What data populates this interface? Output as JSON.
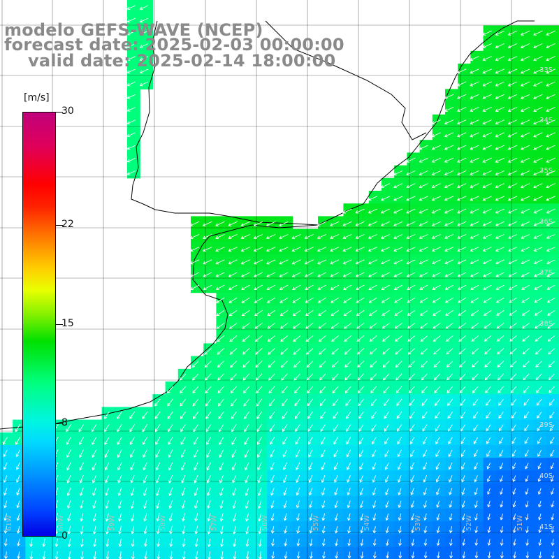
{
  "title": {
    "line1": "modelo GEFS-WAVE (NCEP)",
    "line2": "forecast date: 2025-02-03 00:00:00",
    "line3": "valid date: 2025-02-14 18:00:00"
  },
  "colorbar": {
    "unit": "[m/s]",
    "ticks": [
      {
        "value": 30,
        "label": "30"
      },
      {
        "value": 22,
        "label": "22"
      },
      {
        "value": 15,
        "label": "15"
      },
      {
        "value": 8,
        "label": "8"
      },
      {
        "value": 0,
        "label": "0"
      }
    ],
    "min": 0,
    "max": 30
  },
  "map": {
    "lat_labels": [
      "33S",
      "34S",
      "35S",
      "36S",
      "37S",
      "38S",
      "39S",
      "40S",
      "41S"
    ],
    "lon_labels": [
      "61W",
      "60W",
      "59W",
      "58W",
      "57W",
      "56W",
      "55W",
      "54W",
      "53W",
      "52W",
      "51W"
    ],
    "colors": {
      "land": "#ffffff",
      "grid": "#000000",
      "coast": "#000000",
      "arrows": "#ffffff"
    }
  }
}
